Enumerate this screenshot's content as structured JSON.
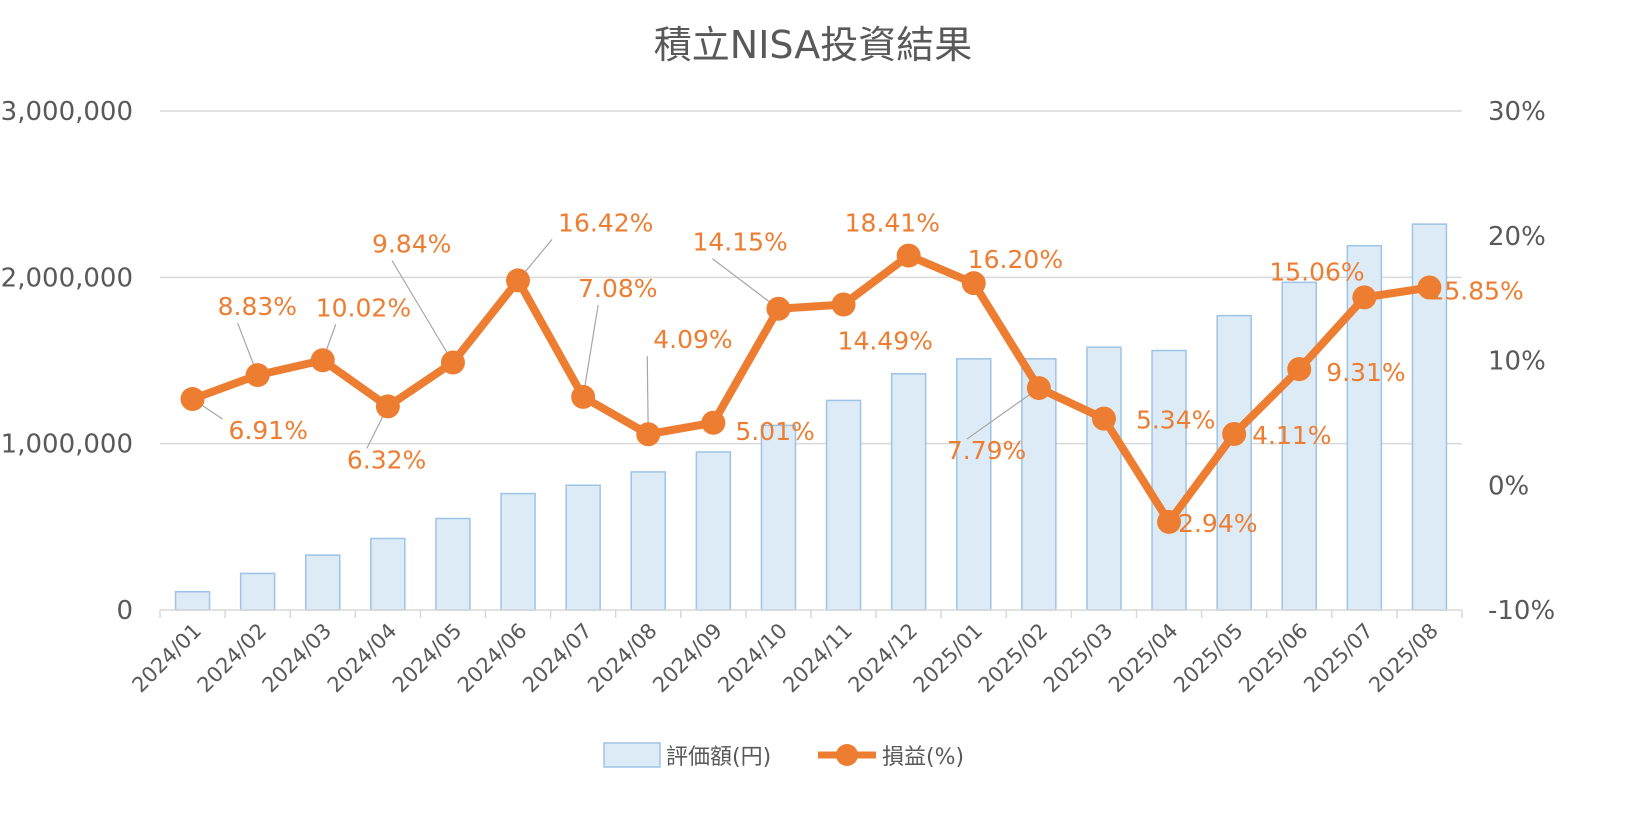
{
  "chart_data": {
    "type": "bar",
    "title": "積立NISA投資結果",
    "categories": [
      "2024/01",
      "2024/02",
      "2024/03",
      "2024/04",
      "2024/05",
      "2024/06",
      "2024/07",
      "2024/08",
      "2024/09",
      "2024/10",
      "2024/11",
      "2024/12",
      "2025/01",
      "2025/02",
      "2025/03",
      "2025/04",
      "2025/05",
      "2025/06",
      "2025/07",
      "2025/08"
    ],
    "series": [
      {
        "name": "評価額(円)",
        "type": "bar",
        "axis": "left",
        "color": "#DDEBF7",
        "border_color": "#9DC3E6",
        "values": [
          110000,
          220000,
          330000,
          430000,
          550000,
          700000,
          750000,
          830000,
          950000,
          1110000,
          1260000,
          1420000,
          1510000,
          1510000,
          1580000,
          1560000,
          1770000,
          1970000,
          2190000,
          2320000
        ]
      },
      {
        "name": "損益(%)",
        "type": "line",
        "axis": "right",
        "color": "#ED7D31",
        "values": [
          6.91,
          8.83,
          10.02,
          6.32,
          9.84,
          16.42,
          7.08,
          4.09,
          5.01,
          14.15,
          14.49,
          18.41,
          16.2,
          7.79,
          5.34,
          -2.94,
          4.11,
          9.31,
          15.06,
          15.85
        ],
        "labels": [
          "6.91%",
          "8.83%",
          "10.02%",
          "6.32%",
          "9.84%",
          "16.42%",
          "7.08%",
          "4.09%",
          "5.01%",
          "14.15%",
          "14.49%",
          "18.41%",
          "16.20%",
          "7.79%",
          "5.34%",
          "-2.94%",
          "4.11%",
          "9.31%",
          "15.06%",
          "15.85%"
        ]
      }
    ],
    "y_left": {
      "ylim": [
        0,
        3000000
      ],
      "ticks": [
        0,
        1000000,
        2000000,
        3000000
      ],
      "tick_labels": [
        "0",
        "1,000,000",
        "2,000,000",
        "3,000,000"
      ]
    },
    "y_right": {
      "ylim": [
        -10,
        30
      ],
      "ticks": [
        -10,
        0,
        10,
        20,
        30
      ],
      "tick_labels": [
        "-10%",
        "0%",
        "10%",
        "20%",
        "30%"
      ]
    },
    "grid": true,
    "legend_position": "bottom"
  }
}
